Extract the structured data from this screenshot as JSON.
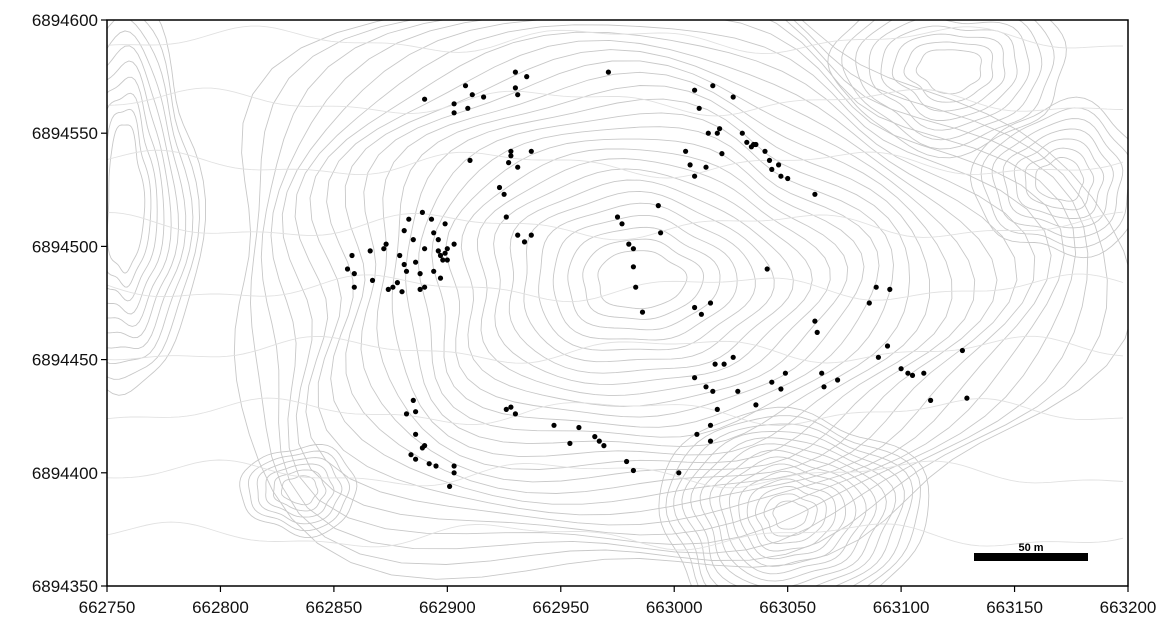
{
  "chart_data": {
    "type": "scatter",
    "title": "",
    "xlabel": "",
    "ylabel": "",
    "xlim": [
      662750,
      663200
    ],
    "ylim": [
      6894350,
      6894600
    ],
    "x_ticks": [
      "662750",
      "662800",
      "662850",
      "662900",
      "662950",
      "663000",
      "663050",
      "663100",
      "663150",
      "663200"
    ],
    "y_ticks": [
      "6894350",
      "6894400",
      "6894450",
      "6894500",
      "6894550",
      "6894600"
    ],
    "background": "topographic contour lines",
    "scale_bar": {
      "label": "50 m",
      "length": 50
    },
    "colors": {
      "points": "#000000",
      "contours": "#c8c8c8",
      "frame": "#000000"
    },
    "points": [
      [
        662890,
        6894565
      ],
      [
        662903,
        6894563
      ],
      [
        662903,
        6894559
      ],
      [
        662908,
        6894571
      ],
      [
        662909,
        6894561
      ],
      [
        662911,
        6894567
      ],
      [
        662916,
        6894566
      ],
      [
        662930,
        6894577
      ],
      [
        662935,
        6894575
      ],
      [
        662930,
        6894570
      ],
      [
        662931,
        6894567
      ],
      [
        662971,
        6894577
      ],
      [
        662910,
        6894538
      ],
      [
        662928,
        6894542
      ],
      [
        662928,
        6894540
      ],
      [
        662927,
        6894537
      ],
      [
        662931,
        6894535
      ],
      [
        662937,
        6894542
      ],
      [
        662923,
        6894526
      ],
      [
        662925,
        6894523
      ],
      [
        662926,
        6894513
      ],
      [
        662931,
        6894505
      ],
      [
        662934,
        6894502
      ],
      [
        662937,
        6894505
      ],
      [
        662856,
        6894490
      ],
      [
        662858,
        6894496
      ],
      [
        662859,
        6894488
      ],
      [
        662859,
        6894482
      ],
      [
        662866,
        6894498
      ],
      [
        662867,
        6894485
      ],
      [
        662872,
        6894499
      ],
      [
        662873,
        6894501
      ],
      [
        662874,
        6894481
      ],
      [
        662876,
        6894482
      ],
      [
        662878,
        6894484
      ],
      [
        662879,
        6894496
      ],
      [
        662880,
        6894480
      ],
      [
        662881,
        6894507
      ],
      [
        662881,
        6894492
      ],
      [
        662882,
        6894489
      ],
      [
        662883,
        6894512
      ],
      [
        662885,
        6894503
      ],
      [
        662886,
        6894493
      ],
      [
        662888,
        6894488
      ],
      [
        662888,
        6894481
      ],
      [
        662889,
        6894515
      ],
      [
        662890,
        6894482
      ],
      [
        662890,
        6894499
      ],
      [
        662893,
        6894512
      ],
      [
        662894,
        6894489
      ],
      [
        662894,
        6894506
      ],
      [
        662896,
        6894503
      ],
      [
        662896,
        6894498
      ],
      [
        662897,
        6894496
      ],
      [
        662897,
        6894486
      ],
      [
        662898,
        6894494
      ],
      [
        662899,
        6894497
      ],
      [
        662899,
        6894510
      ],
      [
        662900,
        6894499
      ],
      [
        662900,
        6894494
      ],
      [
        662903,
        6894501
      ],
      [
        662882,
        6894426
      ],
      [
        662885,
        6894432
      ],
      [
        662886,
        6894427
      ],
      [
        662886,
        6894417
      ],
      [
        662884,
        6894408
      ],
      [
        662886,
        6894406
      ],
      [
        662889,
        6894411
      ],
      [
        662890,
        6894412
      ],
      [
        662892,
        6894404
      ],
      [
        662895,
        6894403
      ],
      [
        662901,
        6894394
      ],
      [
        662903,
        6894403
      ],
      [
        662903,
        6894400
      ],
      [
        662926,
        6894428
      ],
      [
        662928,
        6894429
      ],
      [
        662930,
        6894426
      ],
      [
        662947,
        6894421
      ],
      [
        662954,
        6894413
      ],
      [
        662958,
        6894420
      ],
      [
        662965,
        6894416
      ],
      [
        662967,
        6894414
      ],
      [
        662969,
        6894412
      ],
      [
        662979,
        6894405
      ],
      [
        662982,
        6894401
      ],
      [
        663002,
        6894400
      ],
      [
        662993,
        6894518
      ],
      [
        662994,
        6894506
      ],
      [
        662975,
        6894513
      ],
      [
        662977,
        6894510
      ],
      [
        662980,
        6894501
      ],
      [
        662982,
        6894499
      ],
      [
        662982,
        6894491
      ],
      [
        662983,
        6894482
      ],
      [
        662986,
        6894471
      ],
      [
        663009,
        6894473
      ],
      [
        663012,
        6894470
      ],
      [
        663016,
        6894475
      ],
      [
        663041,
        6894490
      ],
      [
        663005,
        6894542
      ],
      [
        663007,
        6894536
      ],
      [
        663009,
        6894531
      ],
      [
        663009,
        6894569
      ],
      [
        663011,
        6894561
      ],
      [
        663014,
        6894535
      ],
      [
        663015,
        6894550
      ],
      [
        663017,
        6894571
      ],
      [
        663019,
        6894550
      ],
      [
        663020,
        6894552
      ],
      [
        663021,
        6894541
      ],
      [
        663026,
        6894566
      ],
      [
        663030,
        6894550
      ],
      [
        663032,
        6894546
      ],
      [
        663034,
        6894544
      ],
      [
        663035,
        6894545
      ],
      [
        663036,
        6894545
      ],
      [
        663040,
        6894542
      ],
      [
        663042,
        6894538
      ],
      [
        663043,
        6894534
      ],
      [
        663046,
        6894536
      ],
      [
        663047,
        6894531
      ],
      [
        663050,
        6894530
      ],
      [
        663062,
        6894523
      ],
      [
        663062,
        6894467
      ],
      [
        663063,
        6894462
      ],
      [
        663065,
        6894444
      ],
      [
        663066,
        6894438
      ],
      [
        663072,
        6894441
      ],
      [
        663086,
        6894475
      ],
      [
        663089,
        6894482
      ],
      [
        663095,
        6894481
      ],
      [
        663090,
        6894451
      ],
      [
        663094,
        6894456
      ],
      [
        663100,
        6894446
      ],
      [
        663103,
        6894444
      ],
      [
        663105,
        6894443
      ],
      [
        663110,
        6894444
      ],
      [
        663113,
        6894432
      ],
      [
        663127,
        6894454
      ],
      [
        663129,
        6894433
      ],
      [
        663018,
        6894448
      ],
      [
        663022,
        6894448
      ],
      [
        663026,
        6894451
      ],
      [
        663028,
        6894436
      ],
      [
        663014,
        6894438
      ],
      [
        663017,
        6894436
      ],
      [
        663009,
        6894442
      ],
      [
        663019,
        6894428
      ],
      [
        663016,
        6894421
      ],
      [
        663010,
        6894417
      ],
      [
        663016,
        6894414
      ],
      [
        663036,
        6894430
      ],
      [
        663043,
        6894440
      ],
      [
        663047,
        6894437
      ],
      [
        663049,
        6894444
      ]
    ]
  }
}
